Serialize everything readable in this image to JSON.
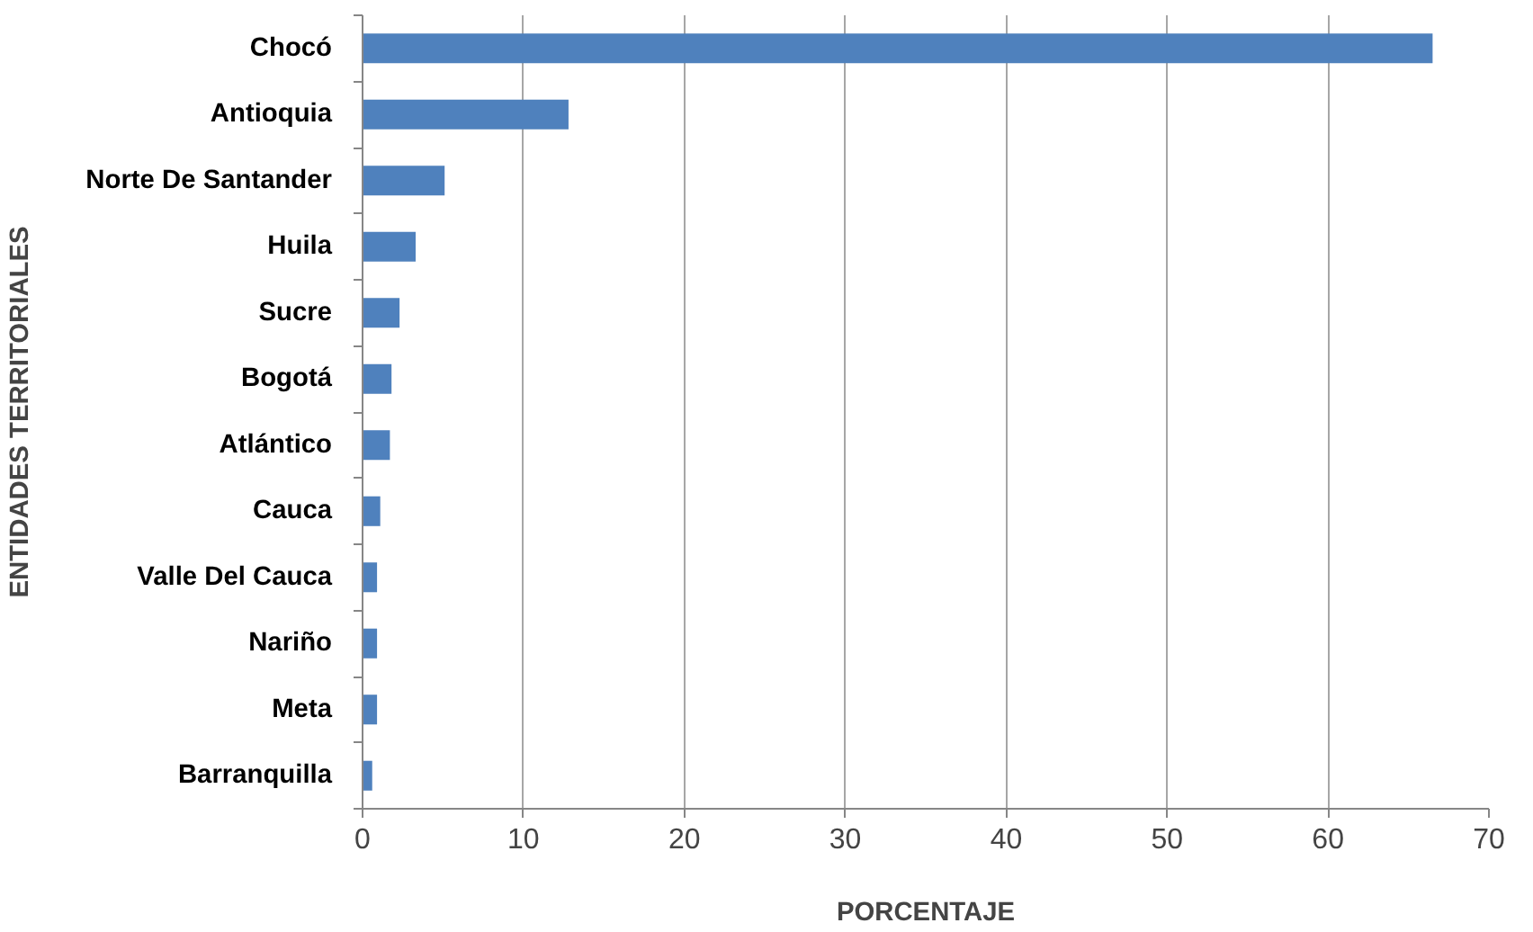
{
  "chart_data": {
    "type": "bar",
    "orientation": "horizontal",
    "xlabel": "PORCENTAJE",
    "ylabel": "ENTIDADES TERRITORIALES",
    "categories": [
      "Chocó",
      "Antioquia",
      "Norte De Santander",
      "Huila",
      "Sucre",
      "Bogotá",
      "Atlántico",
      "Cauca",
      "Valle Del Cauca",
      "Nariño",
      "Meta",
      "Barranquilla"
    ],
    "values": [
      66.5,
      12.8,
      5.1,
      3.3,
      2.3,
      1.8,
      1.7,
      1.1,
      0.9,
      0.9,
      0.9,
      0.6
    ],
    "color": "#4f81bd",
    "xlim": [
      0,
      70
    ],
    "xticks": [
      0,
      10,
      20,
      30,
      40,
      50,
      60,
      70
    ],
    "grid": "x"
  }
}
